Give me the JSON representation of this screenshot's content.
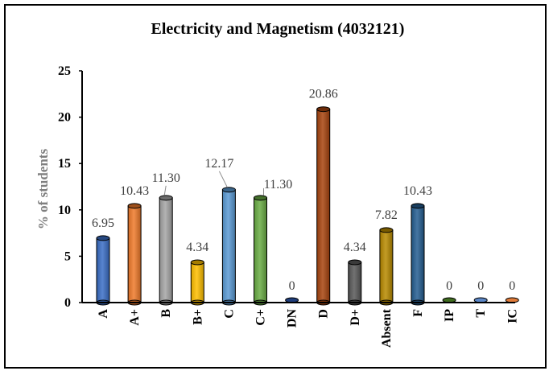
{
  "chart_data": {
    "type": "bar",
    "title": "Electricity and Magnetism (4032121)",
    "ylabel": "% of students",
    "xlabel": "",
    "ylim": [
      0,
      25
    ],
    "yticks": [
      0,
      5,
      10,
      15,
      20,
      25
    ],
    "grid": false,
    "categories": [
      "A",
      "A+",
      "B",
      "B+",
      "C",
      "C+",
      "DN",
      "D",
      "D+",
      "Absent",
      "F",
      "IP",
      "T",
      "IC"
    ],
    "values": [
      6.95,
      10.43,
      11.3,
      4.34,
      12.17,
      11.3,
      0,
      20.86,
      4.34,
      7.82,
      10.43,
      0,
      0,
      0
    ],
    "data_labels": [
      "6.95",
      "10.43",
      "11.30",
      "4.34",
      "12.17",
      "11.30",
      "0",
      "20.86",
      "4.34",
      "7.82",
      "10.43",
      "0",
      "0",
      "0"
    ],
    "colors": [
      "#3a6ec6",
      "#f07a2a",
      "#a6a6a6",
      "#ffc000",
      "#5b9bd5",
      "#6aad44",
      "#1f3d7a",
      "#a8440e",
      "#595959",
      "#b88a00",
      "#255e91",
      "#3f6b1f",
      "#5b86c5",
      "#e07b39"
    ]
  }
}
